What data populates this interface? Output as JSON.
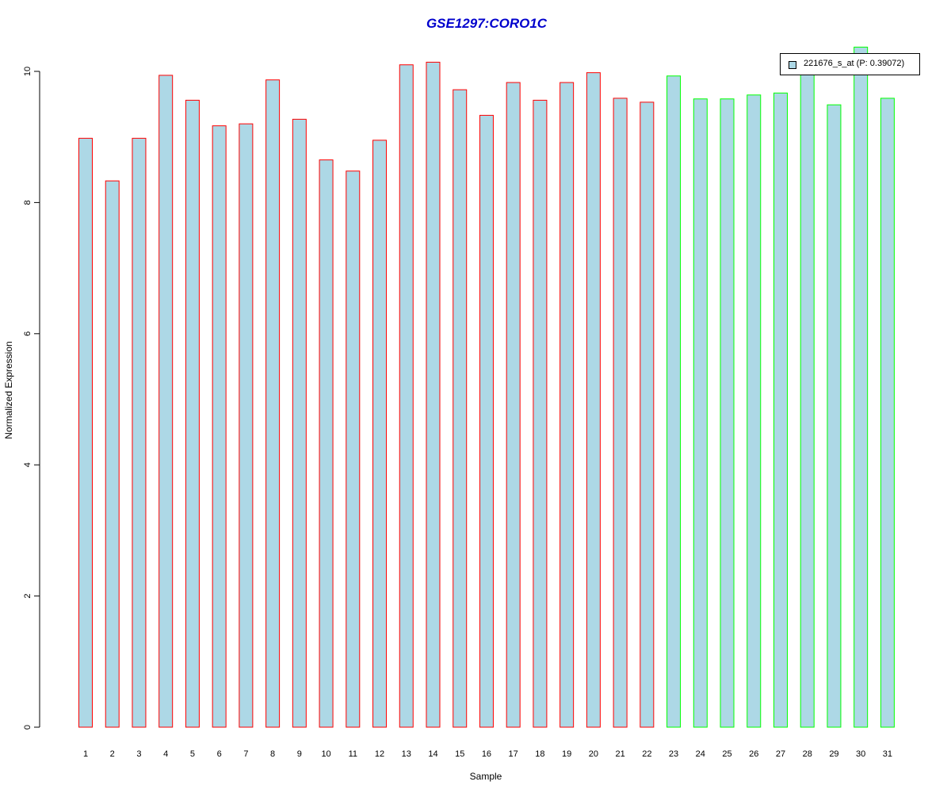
{
  "chart_data": {
    "type": "bar",
    "title": "GSE1297:CORO1C",
    "xlabel": "Sample",
    "ylabel": "Normalized Expression",
    "ylim": [
      0,
      10.4
    ],
    "y_ticks": [
      "0",
      "2",
      "4",
      "6",
      "8",
      "10"
    ],
    "categories": [
      "1",
      "2",
      "3",
      "4",
      "5",
      "6",
      "7",
      "8",
      "9",
      "10",
      "11",
      "12",
      "13",
      "14",
      "15",
      "16",
      "17",
      "18",
      "19",
      "20",
      "21",
      "22",
      "23",
      "24",
      "25",
      "26",
      "27",
      "28",
      "29",
      "30",
      "31"
    ],
    "series": [
      {
        "name": "221676_s_at (P: 0.39072)",
        "values": [
          8.98,
          8.33,
          8.98,
          9.94,
          9.56,
          9.17,
          9.2,
          9.87,
          9.27,
          8.65,
          8.48,
          8.95,
          10.1,
          10.14,
          9.72,
          9.33,
          9.83,
          9.56,
          9.83,
          9.98,
          9.59,
          9.53,
          9.93,
          9.58,
          9.58,
          9.64,
          9.67,
          10.06,
          9.49,
          10.37,
          9.59
        ],
        "fill": "#add8e6",
        "group": [
          "1",
          "1",
          "1",
          "1",
          "1",
          "1",
          "1",
          "1",
          "1",
          "1",
          "1",
          "1",
          "1",
          "1",
          "1",
          "1",
          "1",
          "1",
          "1",
          "1",
          "1",
          "1",
          "2",
          "2",
          "2",
          "2",
          "2",
          "2",
          "2",
          "2",
          "2"
        ]
      }
    ],
    "group_colors": {
      "1": "#ff0000",
      "2": "#00ff00"
    },
    "grid": false,
    "legend_position": "top-right"
  }
}
